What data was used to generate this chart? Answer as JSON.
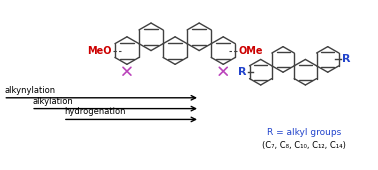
{
  "bg_color": "#ffffff",
  "arrow_color": "#000000",
  "meo_color": "#cc0000",
  "x_color": "#bb44bb",
  "r_color": "#2244cc",
  "text_color": "#000000",
  "structure_color": "#404040",
  "alkynylation_label": "alkynylation",
  "alkylation_label": "alkylation",
  "hydrogenation_label": "hydrogenation",
  "r_equals": "R = alkyl groups",
  "c_groups": "(C₇, C₈, C₁₀, C₁₂, C₁₄)"
}
